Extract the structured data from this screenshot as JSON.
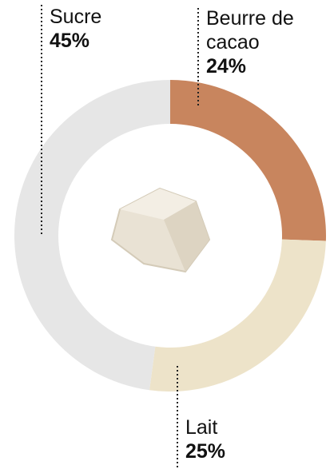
{
  "chart_data": {
    "type": "pie",
    "donut": true,
    "categories": [
      "Beurre de cacao",
      "Lait",
      "Sucre"
    ],
    "values": [
      24,
      25,
      45
    ],
    "value_labels": [
      "24%",
      "25%",
      "45%"
    ],
    "colors": [
      "#c8855e",
      "#ede3c9",
      "#e6e6e6"
    ]
  }
}
